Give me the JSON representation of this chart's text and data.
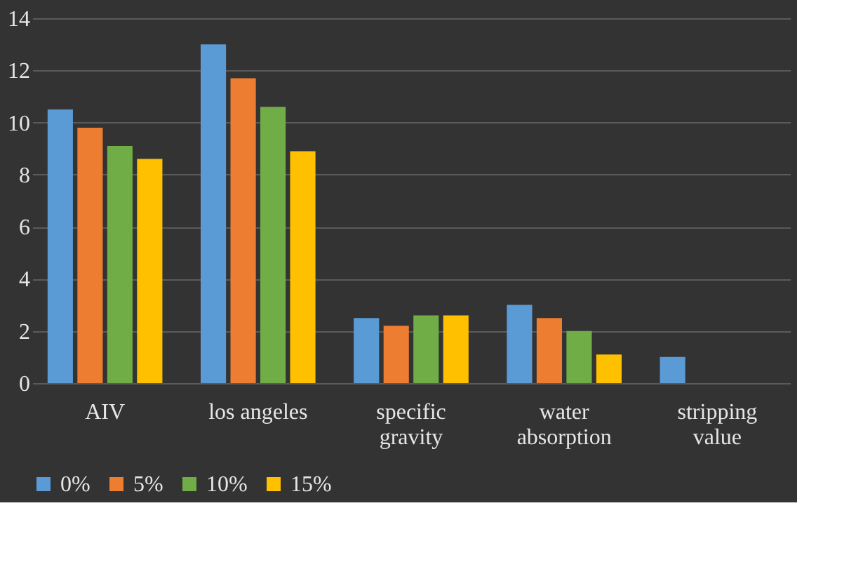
{
  "chart_data": {
    "type": "bar",
    "categories": [
      "AIV",
      "los angeles",
      "specific gravity",
      "water absorption",
      "stripping value"
    ],
    "series": [
      {
        "name": "0%",
        "color": "#5b9bd5",
        "values": [
          10.5,
          13.0,
          2.5,
          3.0,
          1.0
        ]
      },
      {
        "name": "5%",
        "color": "#ed7d31",
        "values": [
          9.8,
          11.7,
          2.2,
          2.5,
          null
        ]
      },
      {
        "name": "10%",
        "color": "#70ad47",
        "values": [
          9.1,
          10.6,
          2.6,
          2.0,
          null
        ]
      },
      {
        "name": "15%",
        "color": "#ffc000",
        "values": [
          8.6,
          8.9,
          2.6,
          1.1,
          null
        ]
      }
    ],
    "ylim": [
      0,
      14
    ],
    "yticks": [
      0,
      2,
      4,
      6,
      8,
      10,
      12,
      14
    ],
    "grid": "y",
    "legend": "bottom"
  }
}
